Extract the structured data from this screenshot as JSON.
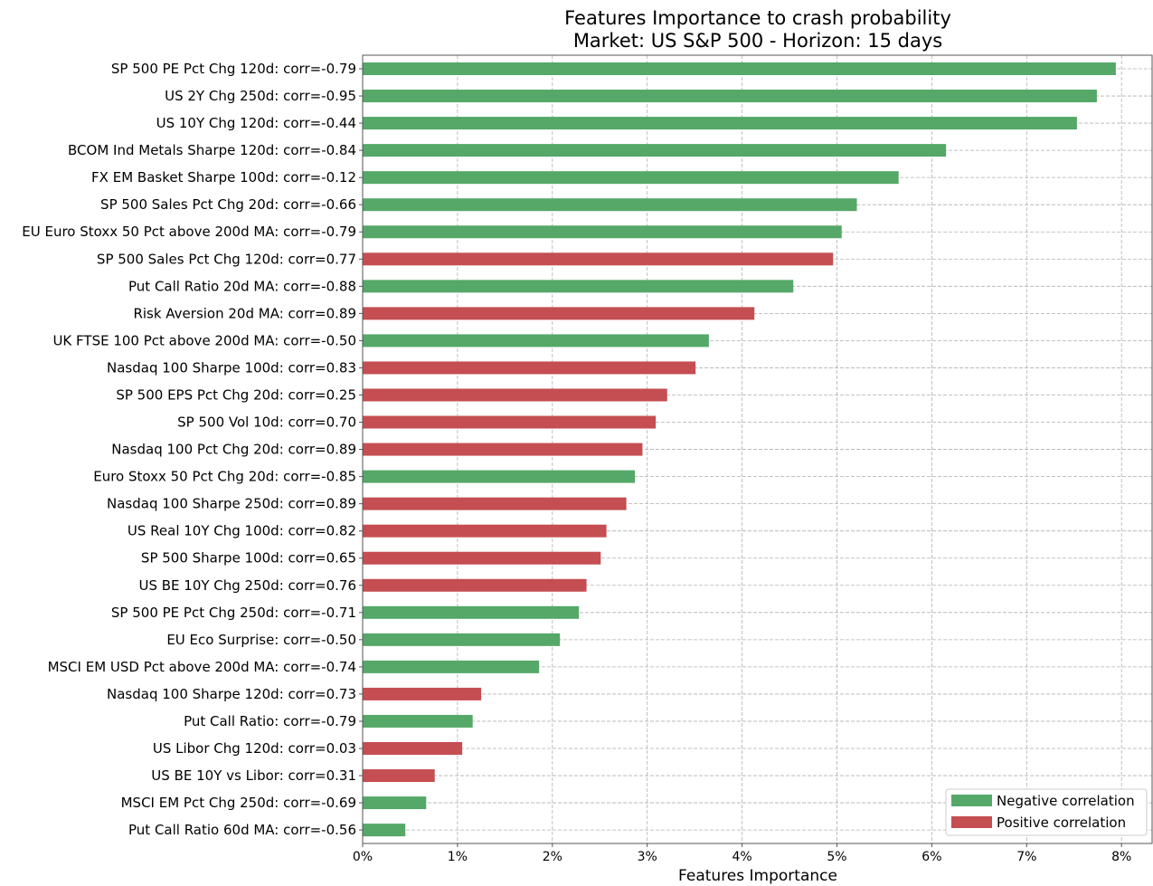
{
  "chart_data": {
    "type": "bar",
    "orientation": "horizontal",
    "title": "Features Importance to crash probability",
    "subtitle": "Market: US S&P 500 - Horizon: 15 days",
    "xlabel": "Features Importance",
    "ylabel": "",
    "xlim": [
      0,
      0.0826
    ],
    "xticks": [
      0,
      0.01,
      0.02,
      0.03,
      0.04,
      0.05,
      0.06,
      0.07,
      0.08
    ],
    "xtick_labels": [
      "0%",
      "1%",
      "2%",
      "3%",
      "4%",
      "5%",
      "6%",
      "7%",
      "8%"
    ],
    "grid": true,
    "legend_position": "bottom-right",
    "colors": {
      "negative": "#55a868",
      "positive": "#c44e52"
    },
    "legend": [
      {
        "label": "Negative correlation",
        "color_key": "negative"
      },
      {
        "label": "Positive correlation",
        "color_key": "positive"
      }
    ],
    "bars": [
      {
        "label": "SP 500 PE Pct Chg 120d: corr=-0.79",
        "value": 0.0794,
        "sign": "negative"
      },
      {
        "label": "US 2Y Chg 250d: corr=-0.95",
        "value": 0.0774,
        "sign": "negative"
      },
      {
        "label": "US 10Y Chg 120d: corr=-0.44",
        "value": 0.0753,
        "sign": "negative"
      },
      {
        "label": "BCOM Ind Metals Sharpe 120d: corr=-0.84",
        "value": 0.0615,
        "sign": "negative"
      },
      {
        "label": "FX EM Basket Sharpe 100d: corr=-0.12",
        "value": 0.0565,
        "sign": "negative"
      },
      {
        "label": "SP 500 Sales Pct Chg 20d: corr=-0.66",
        "value": 0.0521,
        "sign": "negative"
      },
      {
        "label": "EU Euro Stoxx 50 Pct above 200d MA: corr=-0.79",
        "value": 0.0505,
        "sign": "negative"
      },
      {
        "label": "SP 500 Sales Pct Chg 120d: corr=0.77",
        "value": 0.0496,
        "sign": "positive"
      },
      {
        "label": "Put Call Ratio 20d MA: corr=-0.88",
        "value": 0.0454,
        "sign": "negative"
      },
      {
        "label": "Risk Aversion 20d MA: corr=0.89",
        "value": 0.0413,
        "sign": "positive"
      },
      {
        "label": "UK FTSE 100 Pct above 200d MA: corr=-0.50",
        "value": 0.0365,
        "sign": "negative"
      },
      {
        "label": "Nasdaq 100 Sharpe 100d: corr=0.83",
        "value": 0.0351,
        "sign": "positive"
      },
      {
        "label": "SP 500 EPS Pct Chg 20d: corr=0.25",
        "value": 0.0321,
        "sign": "positive"
      },
      {
        "label": "SP 500 Vol 10d: corr=0.70",
        "value": 0.0309,
        "sign": "positive"
      },
      {
        "label": "Nasdaq 100 Pct Chg 20d: corr=0.89",
        "value": 0.0295,
        "sign": "positive"
      },
      {
        "label": "Euro Stoxx 50 Pct Chg 20d: corr=-0.85",
        "value": 0.0287,
        "sign": "negative"
      },
      {
        "label": "Nasdaq 100 Sharpe 250d: corr=0.89",
        "value": 0.0278,
        "sign": "positive"
      },
      {
        "label": "US Real 10Y Chg 100d: corr=0.82",
        "value": 0.0257,
        "sign": "positive"
      },
      {
        "label": "SP 500 Sharpe 100d: corr=0.65",
        "value": 0.0251,
        "sign": "positive"
      },
      {
        "label": "US BE 10Y Chg 250d: corr=0.76",
        "value": 0.0236,
        "sign": "positive"
      },
      {
        "label": "SP 500 PE Pct Chg 250d: corr=-0.71",
        "value": 0.0228,
        "sign": "negative"
      },
      {
        "label": "EU Eco Surprise: corr=-0.50",
        "value": 0.0208,
        "sign": "negative"
      },
      {
        "label": "MSCI EM USD Pct above 200d MA: corr=-0.74",
        "value": 0.0186,
        "sign": "negative"
      },
      {
        "label": "Nasdaq 100 Sharpe 120d: corr=0.73",
        "value": 0.0125,
        "sign": "positive"
      },
      {
        "label": "Put Call Ratio: corr=-0.79",
        "value": 0.0116,
        "sign": "negative"
      },
      {
        "label": "US Libor Chg 120d: corr=0.03",
        "value": 0.0105,
        "sign": "positive"
      },
      {
        "label": "US BE 10Y vs Libor: corr=0.31",
        "value": 0.0076,
        "sign": "positive"
      },
      {
        "label": "MSCI EM Pct Chg 250d: corr=-0.69",
        "value": 0.0067,
        "sign": "negative"
      },
      {
        "label": "Put Call Ratio 60d MA: corr=-0.56",
        "value": 0.0045,
        "sign": "negative"
      }
    ]
  }
}
